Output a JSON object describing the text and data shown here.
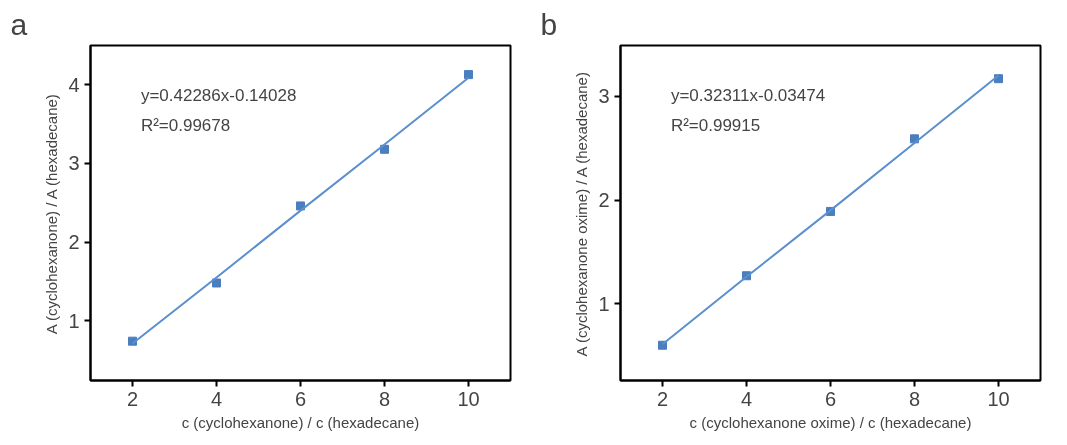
{
  "chart_data": [
    {
      "type": "scatter",
      "xlabel": "c (cyclohexanone) / c (hexadecane)",
      "ylabel": "A (cyclohexanone) / A (hexadecane)",
      "annotations": [
        "a",
        "y=0.42286x-0.14028",
        "R²=0.99678"
      ],
      "x": [
        2,
        4,
        6,
        8,
        10
      ],
      "xlim": [
        1,
        11
      ],
      "xticks": [
        2,
        4,
        6,
        8,
        10
      ],
      "ylim": [
        0.24,
        4.5
      ],
      "yticks": [
        1,
        2,
        3,
        4
      ],
      "grid": false,
      "series": [
        {
          "marker": "square",
          "color": "#4a7ebf",
          "values": [
            0.74,
            1.48,
            2.46,
            3.18,
            4.13
          ]
        },
        {
          "type": "line",
          "marker": "none",
          "color": "#5b8fd0",
          "x": [
            2,
            4,
            6,
            8,
            10
          ],
          "values": [
            0.71,
            1.55,
            2.4,
            3.24,
            4.09
          ]
        }
      ]
    },
    {
      "type": "scatter",
      "xlabel": "c (cyclohexanone oxime) / c (hexadecane)",
      "ylabel": "A (cyclohexanone oxime) / A (hexadecane)",
      "annotations": [
        "b",
        "y=0.32311x-0.03474",
        "R²=0.99915"
      ],
      "x": [
        2,
        4,
        6,
        8,
        10
      ],
      "xlim": [
        1,
        11
      ],
      "xticks": [
        2,
        4,
        6,
        8,
        10
      ],
      "ylim": [
        0.26,
        3.49
      ],
      "yticks": [
        1,
        2,
        3
      ],
      "grid": false,
      "series": [
        {
          "marker": "square",
          "color": "#4a7ebf",
          "values": [
            0.6,
            1.27,
            1.89,
            2.59,
            3.17
          ]
        },
        {
          "type": "line",
          "marker": "none",
          "color": "#5b8fd0",
          "x": [
            2,
            4,
            6,
            8,
            10
          ],
          "values": [
            0.61,
            1.26,
            1.9,
            2.55,
            3.2
          ]
        }
      ]
    }
  ]
}
